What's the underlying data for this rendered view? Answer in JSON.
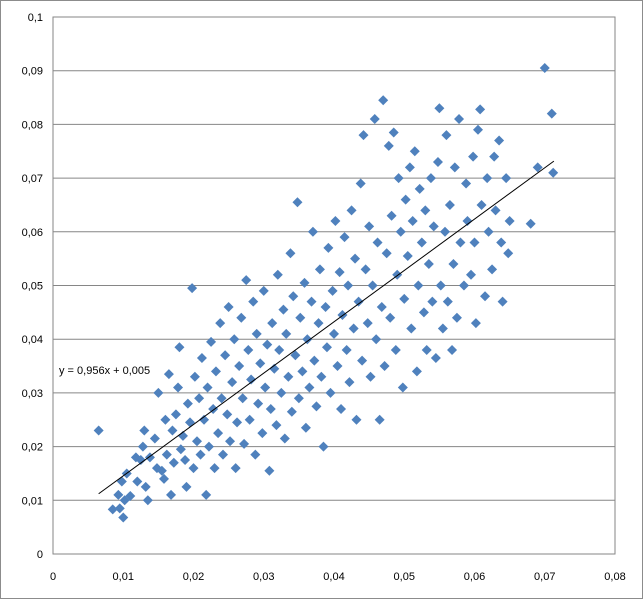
{
  "chart_data": {
    "type": "scatter",
    "title": "",
    "xlabel": "",
    "ylabel": "",
    "xlim": [
      0,
      0.08
    ],
    "ylim": [
      0,
      0.1
    ],
    "grid": "horizontal major gridlines",
    "legend": "none",
    "x_ticks": [
      {
        "value": 0,
        "label": "0"
      },
      {
        "value": 0.01,
        "label": "0,01"
      },
      {
        "value": 0.02,
        "label": "0,02"
      },
      {
        "value": 0.03,
        "label": "0,03"
      },
      {
        "value": 0.04,
        "label": "0,04"
      },
      {
        "value": 0.05,
        "label": "0,05"
      },
      {
        "value": 0.06,
        "label": "0,06"
      },
      {
        "value": 0.07,
        "label": "0,07"
      },
      {
        "value": 0.08,
        "label": "0,08"
      }
    ],
    "y_ticks": [
      {
        "value": 0,
        "label": "0"
      },
      {
        "value": 0.01,
        "label": "0,01"
      },
      {
        "value": 0.02,
        "label": "0,02"
      },
      {
        "value": 0.03,
        "label": "0,03"
      },
      {
        "value": 0.04,
        "label": "0,04"
      },
      {
        "value": 0.05,
        "label": "0,05"
      },
      {
        "value": 0.06,
        "label": "0,06"
      },
      {
        "value": 0.07,
        "label": "0,07"
      },
      {
        "value": 0.08,
        "label": "0,08"
      },
      {
        "value": 0.09,
        "label": "0,09"
      },
      {
        "value": 0.1,
        "label": "0,1"
      }
    ],
    "series": [
      {
        "marker": "diamond",
        "color": "#4f81bd",
        "points": [
          [
            0.0065,
            0.023
          ],
          [
            0.0085,
            0.0083
          ],
          [
            0.0093,
            0.011
          ],
          [
            0.0095,
            0.0085
          ],
          [
            0.0098,
            0.0135
          ],
          [
            0.01,
            0.0068
          ],
          [
            0.0102,
            0.01
          ],
          [
            0.0105,
            0.015
          ],
          [
            0.011,
            0.0108
          ],
          [
            0.0118,
            0.018
          ],
          [
            0.012,
            0.0135
          ],
          [
            0.0125,
            0.0175
          ],
          [
            0.0128,
            0.02
          ],
          [
            0.013,
            0.023
          ],
          [
            0.0132,
            0.0125
          ],
          [
            0.0135,
            0.01
          ],
          [
            0.0138,
            0.018
          ],
          [
            0.0145,
            0.0215
          ],
          [
            0.0148,
            0.016
          ],
          [
            0.015,
            0.03
          ],
          [
            0.0155,
            0.0155
          ],
          [
            0.0158,
            0.014
          ],
          [
            0.016,
            0.025
          ],
          [
            0.0162,
            0.0185
          ],
          [
            0.0165,
            0.0335
          ],
          [
            0.0168,
            0.011
          ],
          [
            0.017,
            0.023
          ],
          [
            0.0172,
            0.017
          ],
          [
            0.0175,
            0.026
          ],
          [
            0.0178,
            0.031
          ],
          [
            0.018,
            0.0385
          ],
          [
            0.0182,
            0.0195
          ],
          [
            0.0185,
            0.022
          ],
          [
            0.0188,
            0.0175
          ],
          [
            0.019,
            0.0125
          ],
          [
            0.0192,
            0.028
          ],
          [
            0.0195,
            0.0245
          ],
          [
            0.0198,
            0.0495
          ],
          [
            0.02,
            0.016
          ],
          [
            0.0202,
            0.033
          ],
          [
            0.0205,
            0.021
          ],
          [
            0.0208,
            0.029
          ],
          [
            0.021,
            0.0185
          ],
          [
            0.0212,
            0.0365
          ],
          [
            0.0215,
            0.025
          ],
          [
            0.0218,
            0.011
          ],
          [
            0.022,
            0.031
          ],
          [
            0.0222,
            0.02
          ],
          [
            0.0225,
            0.0395
          ],
          [
            0.0228,
            0.027
          ],
          [
            0.023,
            0.016
          ],
          [
            0.0232,
            0.034
          ],
          [
            0.0235,
            0.0225
          ],
          [
            0.0238,
            0.043
          ],
          [
            0.024,
            0.029
          ],
          [
            0.0242,
            0.0185
          ],
          [
            0.0245,
            0.037
          ],
          [
            0.0248,
            0.026
          ],
          [
            0.025,
            0.046
          ],
          [
            0.0252,
            0.021
          ],
          [
            0.0255,
            0.032
          ],
          [
            0.0258,
            0.04
          ],
          [
            0.026,
            0.016
          ],
          [
            0.0262,
            0.0245
          ],
          [
            0.0265,
            0.035
          ],
          [
            0.0268,
            0.044
          ],
          [
            0.027,
            0.029
          ],
          [
            0.0272,
            0.0205
          ],
          [
            0.0275,
            0.051
          ],
          [
            0.0278,
            0.038
          ],
          [
            0.028,
            0.025
          ],
          [
            0.0282,
            0.0325
          ],
          [
            0.0285,
            0.047
          ],
          [
            0.0288,
            0.0185
          ],
          [
            0.029,
            0.041
          ],
          [
            0.0292,
            0.028
          ],
          [
            0.0295,
            0.0355
          ],
          [
            0.0298,
            0.0225
          ],
          [
            0.03,
            0.049
          ],
          [
            0.0302,
            0.031
          ],
          [
            0.0305,
            0.039
          ],
          [
            0.0308,
            0.0155
          ],
          [
            0.031,
            0.027
          ],
          [
            0.0312,
            0.043
          ],
          [
            0.0315,
            0.0345
          ],
          [
            0.0318,
            0.024
          ],
          [
            0.032,
            0.052
          ],
          [
            0.0322,
            0.038
          ],
          [
            0.0325,
            0.03
          ],
          [
            0.0328,
            0.0455
          ],
          [
            0.033,
            0.0215
          ],
          [
            0.0332,
            0.041
          ],
          [
            0.0335,
            0.033
          ],
          [
            0.0338,
            0.056
          ],
          [
            0.034,
            0.0265
          ],
          [
            0.0342,
            0.048
          ],
          [
            0.0345,
            0.037
          ],
          [
            0.0348,
            0.0655
          ],
          [
            0.035,
            0.029
          ],
          [
            0.0352,
            0.044
          ],
          [
            0.0355,
            0.034
          ],
          [
            0.0358,
            0.0505
          ],
          [
            0.036,
            0.0235
          ],
          [
            0.0362,
            0.04
          ],
          [
            0.0365,
            0.031
          ],
          [
            0.0368,
            0.047
          ],
          [
            0.037,
            0.06
          ],
          [
            0.0372,
            0.036
          ],
          [
            0.0375,
            0.0275
          ],
          [
            0.0378,
            0.043
          ],
          [
            0.038,
            0.053
          ],
          [
            0.0382,
            0.033
          ],
          [
            0.0385,
            0.02
          ],
          [
            0.0388,
            0.046
          ],
          [
            0.039,
            0.0385
          ],
          [
            0.0392,
            0.057
          ],
          [
            0.0395,
            0.03
          ],
          [
            0.0398,
            0.049
          ],
          [
            0.04,
            0.041
          ],
          [
            0.0402,
            0.062
          ],
          [
            0.0405,
            0.035
          ],
          [
            0.0408,
            0.0525
          ],
          [
            0.041,
            0.027
          ],
          [
            0.0412,
            0.0445
          ],
          [
            0.0415,
            0.059
          ],
          [
            0.0418,
            0.038
          ],
          [
            0.042,
            0.05
          ],
          [
            0.0422,
            0.032
          ],
          [
            0.0425,
            0.064
          ],
          [
            0.0428,
            0.042
          ],
          [
            0.043,
            0.055
          ],
          [
            0.0432,
            0.025
          ],
          [
            0.0435,
            0.047
          ],
          [
            0.0438,
            0.069
          ],
          [
            0.044,
            0.036
          ],
          [
            0.0442,
            0.078
          ],
          [
            0.0445,
            0.053
          ],
          [
            0.0448,
            0.043
          ],
          [
            0.045,
            0.061
          ],
          [
            0.0452,
            0.033
          ],
          [
            0.0455,
            0.05
          ],
          [
            0.0458,
            0.081
          ],
          [
            0.046,
            0.04
          ],
          [
            0.0462,
            0.058
          ],
          [
            0.0465,
            0.025
          ],
          [
            0.0468,
            0.046
          ],
          [
            0.047,
            0.0845
          ],
          [
            0.0472,
            0.035
          ],
          [
            0.0475,
            0.056
          ],
          [
            0.0478,
            0.076
          ],
          [
            0.048,
            0.044
          ],
          [
            0.0482,
            0.063
          ],
          [
            0.0485,
            0.0785
          ],
          [
            0.0488,
            0.038
          ],
          [
            0.049,
            0.052
          ],
          [
            0.0492,
            0.07
          ],
          [
            0.0495,
            0.06
          ],
          [
            0.0498,
            0.031
          ],
          [
            0.05,
            0.0475
          ],
          [
            0.0502,
            0.066
          ],
          [
            0.0505,
            0.0555
          ],
          [
            0.0508,
            0.072
          ],
          [
            0.051,
            0.042
          ],
          [
            0.0512,
            0.062
          ],
          [
            0.0515,
            0.075
          ],
          [
            0.0518,
            0.034
          ],
          [
            0.052,
            0.05
          ],
          [
            0.0522,
            0.068
          ],
          [
            0.0525,
            0.058
          ],
          [
            0.0528,
            0.045
          ],
          [
            0.053,
            0.064
          ],
          [
            0.0532,
            0.038
          ],
          [
            0.0535,
            0.054
          ],
          [
            0.0538,
            0.07
          ],
          [
            0.054,
            0.047
          ],
          [
            0.0542,
            0.061
          ],
          [
            0.0545,
            0.0365
          ],
          [
            0.0548,
            0.073
          ],
          [
            0.055,
            0.083
          ],
          [
            0.0552,
            0.05
          ],
          [
            0.0555,
            0.042
          ],
          [
            0.0558,
            0.06
          ],
          [
            0.056,
            0.078
          ],
          [
            0.0562,
            0.047
          ],
          [
            0.0565,
            0.065
          ],
          [
            0.0568,
            0.038
          ],
          [
            0.057,
            0.054
          ],
          [
            0.0572,
            0.072
          ],
          [
            0.0575,
            0.044
          ],
          [
            0.0578,
            0.081
          ],
          [
            0.058,
            0.058
          ],
          [
            0.0585,
            0.05
          ],
          [
            0.0588,
            0.069
          ],
          [
            0.059,
            0.062
          ],
          [
            0.0595,
            0.052
          ],
          [
            0.0598,
            0.074
          ],
          [
            0.06,
            0.058
          ],
          [
            0.0602,
            0.043
          ],
          [
            0.0605,
            0.079
          ],
          [
            0.0608,
            0.0828
          ],
          [
            0.061,
            0.065
          ],
          [
            0.0615,
            0.048
          ],
          [
            0.0618,
            0.07
          ],
          [
            0.062,
            0.06
          ],
          [
            0.0625,
            0.053
          ],
          [
            0.0628,
            0.074
          ],
          [
            0.063,
            0.064
          ],
          [
            0.0635,
            0.077
          ],
          [
            0.0638,
            0.058
          ],
          [
            0.064,
            0.047
          ],
          [
            0.0645,
            0.07
          ],
          [
            0.0648,
            0.056
          ],
          [
            0.065,
            0.062
          ],
          [
            0.068,
            0.0615
          ],
          [
            0.069,
            0.072
          ],
          [
            0.07,
            0.0905
          ],
          [
            0.071,
            0.082
          ],
          [
            0.0712,
            0.071
          ]
        ]
      }
    ],
    "trendline": {
      "type": "linear",
      "slope": 0.956,
      "intercept": 0.005,
      "x_range": [
        0.0065,
        0.0713
      ],
      "label": "y = 0,956x + 0,005"
    }
  }
}
